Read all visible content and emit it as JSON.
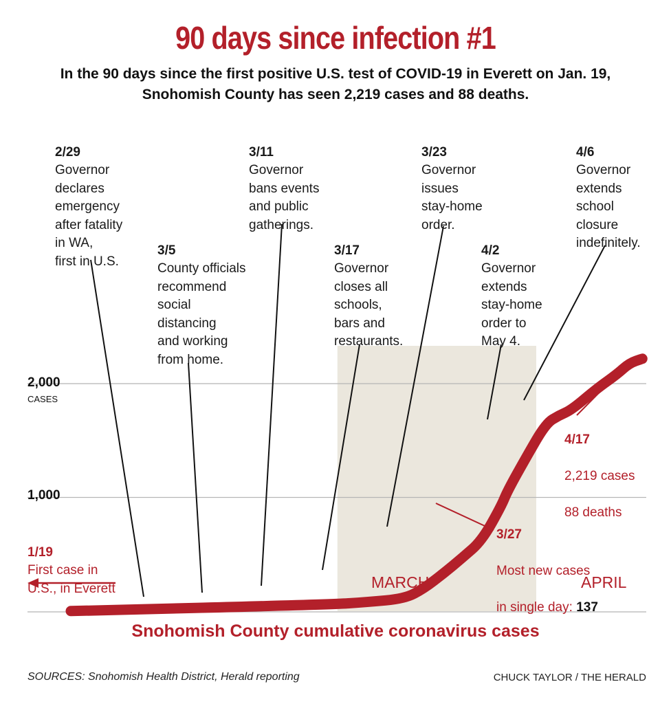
{
  "header": {
    "title": "90 days since infection #1",
    "subtitle": "In the 90 days since the first positive U.S. test of COVID-19 in Everett on Jan. 19, Snohomish County has seen 2,219 cases and 88 deaths."
  },
  "colors": {
    "accent": "#b3202a",
    "shade": "#ebe7dd",
    "grid": "#b5b5b5",
    "text": "#111111"
  },
  "annotations": [
    {
      "date": "2/29",
      "text": "Governor\ndeclares\nemergency\nafter fatality\nin WA,\nfirst in U.S."
    },
    {
      "date": "3/5",
      "text": "County officials\nrecommend\nsocial\ndistancing\nand working\nfrom home."
    },
    {
      "date": "3/11",
      "text": "Governor\nbans events\nand public\ngatherings."
    },
    {
      "date": "3/17",
      "text": "Governor\ncloses all\nschools,\nbars and\nrestaurants."
    },
    {
      "date": "3/23",
      "text": "Governor\nissues\nstay-home\norder."
    },
    {
      "date": "4/2",
      "text": "Governor\nextends\nstay-home\norder to\nMay 4."
    },
    {
      "date": "4/6",
      "text": "Governor\nextends\nschool\nclosure\nindefinitely."
    }
  ],
  "callouts": {
    "first_case": {
      "date": "1/19",
      "text": "First case in\nU.S., in Everett"
    },
    "peak_day": {
      "date": "3/27",
      "text_line1": "Most new cases",
      "text_line2_prefix": "in single day: ",
      "value": "137"
    },
    "latest": {
      "date": "4/17",
      "cases": "2,219 cases",
      "deaths": "88 deaths"
    }
  },
  "axis": {
    "y_ticks": [
      {
        "value": 1000,
        "label": "1,000"
      },
      {
        "value": 2000,
        "label": "2,000"
      }
    ],
    "y_unit": "CASES",
    "months": [
      "MARCH",
      "APRIL"
    ]
  },
  "chart_data": {
    "type": "line",
    "title": "Snohomish County cumulative coronavirus cases",
    "ylim": [
      0,
      2500
    ],
    "x_dates": [
      "2020-01-19",
      "2020-02-29",
      "2020-03-05",
      "2020-03-11",
      "2020-03-14",
      "2020-03-17",
      "2020-03-20",
      "2020-03-23",
      "2020-03-26",
      "2020-03-27",
      "2020-03-30",
      "2020-04-02",
      "2020-04-04",
      "2020-04-06",
      "2020-04-10",
      "2020-04-13",
      "2020-04-15",
      "2020-04-17"
    ],
    "y": [
      1,
      60,
      80,
      110,
      200,
      330,
      470,
      620,
      920,
      1057,
      1360,
      1650,
      1720,
      1770,
      1960,
      2080,
      2180,
      2219
    ],
    "event_markers": [
      "2020-02-29",
      "2020-03-05",
      "2020-03-11",
      "2020-03-17",
      "2020-03-23",
      "2020-03-27",
      "2020-04-02",
      "2020-04-06",
      "2020-04-17"
    ],
    "shaded_period": [
      "2020-03-01",
      "2020-03-31"
    ],
    "grid": "horizontal",
    "footer": {
      "sources": "SOURCES: Snohomish Health District, Herald reporting",
      "credit": "CHUCK TAYLOR / THE HERALD"
    }
  }
}
